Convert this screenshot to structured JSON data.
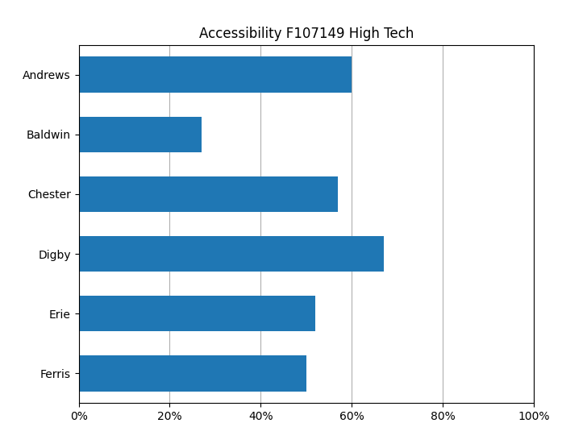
{
  "chart_data": {
    "type": "bar",
    "orientation": "horizontal",
    "title": "Accessibility F107149 High Tech",
    "categories": [
      "Andrews",
      "Baldwin",
      "Chester",
      "Digby",
      "Erie",
      "Ferris"
    ],
    "values": [
      60,
      27,
      57,
      67,
      52,
      50
    ],
    "xlim": [
      0,
      100
    ],
    "xticks": [
      {
        "value": 0,
        "label": "0%"
      },
      {
        "value": 20,
        "label": "20%"
      },
      {
        "value": 40,
        "label": "40%"
      },
      {
        "value": 60,
        "label": "60%"
      },
      {
        "value": 80,
        "label": "80%"
      },
      {
        "value": 100,
        "label": "100%"
      }
    ],
    "grid": true
  }
}
